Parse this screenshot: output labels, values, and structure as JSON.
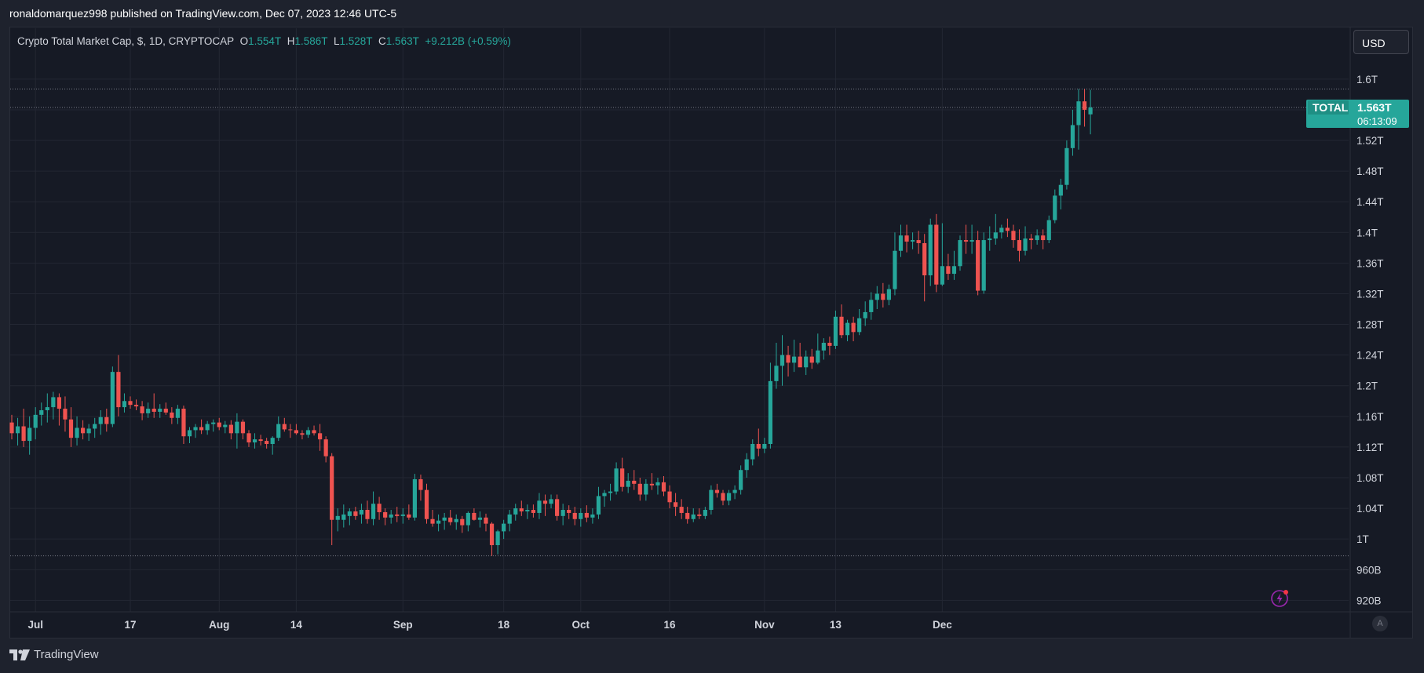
{
  "publish_line": "ronaldomarquez998 published on TradingView.com, Dec 07, 2023 12:46 UTC-5",
  "legend": {
    "symbol": "Crypto Total Market Cap, $, 1D, CRYPTOCAP",
    "o_label": "O",
    "o_value": "1.554T",
    "h_label": "H",
    "h_value": "1.586T",
    "l_label": "L",
    "l_value": "1.528T",
    "c_label": "C",
    "c_value": "1.563T",
    "change": "+9.212B (+0.59%)"
  },
  "currency_label": "USD",
  "price_tag": {
    "name": "TOTAL",
    "price": "1.563T",
    "countdown": "06:13:09"
  },
  "footer_brand": "TradingView",
  "auto_label": "A",
  "colors": {
    "up": "#26a69a",
    "down": "#ef5350",
    "grid": "#232733",
    "background": "#161a25",
    "text": "#d1d4dc",
    "accent": "#9c27b0"
  },
  "chart_data": {
    "type": "candlestick",
    "title": "Crypto Total Market Cap, $, 1D, CRYPTOCAP",
    "ylim": [
      0.905,
      1.65
    ],
    "y_unit": "T USD",
    "y_ticks": [
      "1.6T",
      "1.56T",
      "1.52T",
      "1.48T",
      "1.44T",
      "1.4T",
      "1.36T",
      "1.32T",
      "1.28T",
      "1.24T",
      "1.2T",
      "1.16T",
      "1.12T",
      "1.08T",
      "1.04T",
      "1T",
      "960B",
      "920B"
    ],
    "y_tick_values": [
      1.6,
      1.56,
      1.52,
      1.48,
      1.44,
      1.4,
      1.36,
      1.32,
      1.28,
      1.24,
      1.2,
      1.16,
      1.12,
      1.08,
      1.04,
      1.0,
      0.96,
      0.92
    ],
    "x_labels": [
      {
        "label": "Jul",
        "date": "2023-07-01"
      },
      {
        "label": "17",
        "date": "2023-07-17"
      },
      {
        "label": "Aug",
        "date": "2023-08-01"
      },
      {
        "label": "14",
        "date": "2023-08-14"
      },
      {
        "label": "Sep",
        "date": "2023-09-01"
      },
      {
        "label": "18",
        "date": "2023-09-18"
      },
      {
        "label": "Oct",
        "date": "2023-10-01"
      },
      {
        "label": "16",
        "date": "2023-10-16"
      },
      {
        "label": "Nov",
        "date": "2023-11-01"
      },
      {
        "label": "13",
        "date": "2023-11-13"
      },
      {
        "label": "Dec",
        "date": "2023-12-01"
      }
    ],
    "start_date": "2023-06-27",
    "last_price": 1.563,
    "hlines": [
      1.587,
      1.563,
      0.978
    ],
    "candles": [
      [
        1.152,
        1.162,
        1.13,
        1.138
      ],
      [
        1.138,
        1.158,
        1.122,
        1.147
      ],
      [
        1.147,
        1.17,
        1.12,
        1.128
      ],
      [
        1.128,
        1.16,
        1.11,
        1.145
      ],
      [
        1.145,
        1.172,
        1.13,
        1.162
      ],
      [
        1.162,
        1.178,
        1.148,
        1.168
      ],
      [
        1.168,
        1.19,
        1.152,
        1.172
      ],
      [
        1.172,
        1.192,
        1.156,
        1.185
      ],
      [
        1.185,
        1.19,
        1.148,
        1.17
      ],
      [
        1.17,
        1.186,
        1.14,
        1.156
      ],
      [
        1.156,
        1.172,
        1.12,
        1.132
      ],
      [
        1.132,
        1.16,
        1.122,
        1.145
      ],
      [
        1.145,
        1.155,
        1.13,
        1.138
      ],
      [
        1.138,
        1.15,
        1.128,
        1.144
      ],
      [
        1.144,
        1.158,
        1.132,
        1.15
      ],
      [
        1.15,
        1.168,
        1.136,
        1.159
      ],
      [
        1.159,
        1.17,
        1.14,
        1.15
      ],
      [
        1.15,
        1.225,
        1.146,
        1.218
      ],
      [
        1.218,
        1.24,
        1.16,
        1.172
      ],
      [
        1.172,
        1.19,
        1.165,
        1.18
      ],
      [
        1.18,
        1.186,
        1.17,
        1.175
      ],
      [
        1.175,
        1.182,
        1.168,
        1.173
      ],
      [
        1.173,
        1.18,
        1.155,
        1.164
      ],
      [
        1.164,
        1.178,
        1.158,
        1.17
      ],
      [
        1.17,
        1.19,
        1.158,
        1.166
      ],
      [
        1.166,
        1.176,
        1.158,
        1.17
      ],
      [
        1.17,
        1.178,
        1.162,
        1.165
      ],
      [
        1.165,
        1.172,
        1.15,
        1.158
      ],
      [
        1.158,
        1.175,
        1.15,
        1.17
      ],
      [
        1.17,
        1.174,
        1.124,
        1.134
      ],
      [
        1.134,
        1.146,
        1.125,
        1.142
      ],
      [
        1.142,
        1.15,
        1.132,
        1.146
      ],
      [
        1.146,
        1.156,
        1.137,
        1.142
      ],
      [
        1.142,
        1.154,
        1.136,
        1.15
      ],
      [
        1.15,
        1.156,
        1.14,
        1.152
      ],
      [
        1.152,
        1.158,
        1.142,
        1.146
      ],
      [
        1.146,
        1.154,
        1.138,
        1.149
      ],
      [
        1.149,
        1.155,
        1.13,
        1.138
      ],
      [
        1.138,
        1.164,
        1.118,
        1.153
      ],
      [
        1.153,
        1.156,
        1.13,
        1.138
      ],
      [
        1.138,
        1.142,
        1.12,
        1.126
      ],
      [
        1.126,
        1.138,
        1.118,
        1.13
      ],
      [
        1.13,
        1.136,
        1.122,
        1.128
      ],
      [
        1.128,
        1.132,
        1.118,
        1.124
      ],
      [
        1.124,
        1.134,
        1.11,
        1.132
      ],
      [
        1.132,
        1.16,
        1.128,
        1.15
      ],
      [
        1.15,
        1.158,
        1.14,
        1.143
      ],
      [
        1.143,
        1.15,
        1.132,
        1.142
      ],
      [
        1.142,
        1.15,
        1.136,
        1.138
      ],
      [
        1.138,
        1.142,
        1.13,
        1.136
      ],
      [
        1.136,
        1.146,
        1.132,
        1.142
      ],
      [
        1.142,
        1.148,
        1.135,
        1.138
      ],
      [
        1.138,
        1.15,
        1.115,
        1.13
      ],
      [
        1.13,
        1.134,
        1.1,
        1.108
      ],
      [
        1.108,
        1.112,
        0.992,
        1.025
      ],
      [
        1.025,
        1.04,
        1.01,
        1.03
      ],
      [
        1.025,
        1.045,
        1.015,
        1.032
      ],
      [
        1.03,
        1.04,
        1.018,
        1.036
      ],
      [
        1.036,
        1.042,
        1.025,
        1.03
      ],
      [
        1.032,
        1.046,
        1.02,
        1.038
      ],
      [
        1.038,
        1.05,
        1.02,
        1.026
      ],
      [
        1.026,
        1.062,
        1.018,
        1.046
      ],
      [
        1.046,
        1.055,
        1.025,
        1.035
      ],
      [
        1.035,
        1.04,
        1.018,
        1.028
      ],
      [
        1.028,
        1.038,
        1.02,
        1.032
      ],
      [
        1.032,
        1.042,
        1.022,
        1.03
      ],
      [
        1.03,
        1.04,
        1.02,
        1.032
      ],
      [
        1.032,
        1.045,
        1.025,
        1.028
      ],
      [
        1.028,
        1.085,
        1.024,
        1.078
      ],
      [
        1.078,
        1.084,
        1.05,
        1.064
      ],
      [
        1.064,
        1.072,
        1.02,
        1.026
      ],
      [
        1.026,
        1.038,
        1.016,
        1.02
      ],
      [
        1.02,
        1.032,
        1.01,
        1.024
      ],
      [
        1.024,
        1.034,
        1.012,
        1.028
      ],
      [
        1.028,
        1.038,
        1.018,
        1.022
      ],
      [
        1.022,
        1.032,
        1.012,
        1.026
      ],
      [
        1.026,
        1.03,
        1.008,
        1.018
      ],
      [
        1.018,
        1.036,
        1.01,
        1.034
      ],
      [
        1.034,
        1.04,
        1.024,
        1.025
      ],
      [
        1.025,
        1.036,
        1.015,
        1.028
      ],
      [
        1.028,
        1.033,
        1.01,
        1.02
      ],
      [
        1.02,
        1.022,
        0.978,
        0.992
      ],
      [
        0.992,
        1.012,
        0.98,
        1.01
      ],
      [
        1.01,
        1.025,
        1.0,
        1.02
      ],
      [
        1.02,
        1.038,
        1.01,
        1.032
      ],
      [
        1.032,
        1.046,
        1.024,
        1.04
      ],
      [
        1.04,
        1.05,
        1.03,
        1.036
      ],
      [
        1.036,
        1.045,
        1.026,
        1.038
      ],
      [
        1.038,
        1.045,
        1.028,
        1.034
      ],
      [
        1.034,
        1.06,
        1.026,
        1.05
      ],
      [
        1.05,
        1.058,
        1.03,
        1.046
      ],
      [
        1.046,
        1.058,
        1.04,
        1.052
      ],
      [
        1.052,
        1.058,
        1.024,
        1.03
      ],
      [
        1.03,
        1.046,
        1.018,
        1.038
      ],
      [
        1.038,
        1.044,
        1.026,
        1.034
      ],
      [
        1.034,
        1.042,
        1.018,
        1.026
      ],
      [
        1.026,
        1.04,
        1.016,
        1.034
      ],
      [
        1.034,
        1.044,
        1.022,
        1.028
      ],
      [
        1.028,
        1.04,
        1.02,
        1.032
      ],
      [
        1.032,
        1.068,
        1.026,
        1.056
      ],
      [
        1.056,
        1.064,
        1.042,
        1.06
      ],
      [
        1.06,
        1.072,
        1.05,
        1.062
      ],
      [
        1.062,
        1.1,
        1.058,
        1.092
      ],
      [
        1.092,
        1.106,
        1.062,
        1.068
      ],
      [
        1.068,
        1.086,
        1.06,
        1.076
      ],
      [
        1.076,
        1.09,
        1.064,
        1.072
      ],
      [
        1.072,
        1.08,
        1.05,
        1.058
      ],
      [
        1.058,
        1.078,
        1.05,
        1.072
      ],
      [
        1.072,
        1.086,
        1.064,
        1.07
      ],
      [
        1.07,
        1.08,
        1.058,
        1.074
      ],
      [
        1.074,
        1.082,
        1.056,
        1.062
      ],
      [
        1.062,
        1.07,
        1.04,
        1.048
      ],
      [
        1.048,
        1.06,
        1.03,
        1.042
      ],
      [
        1.042,
        1.052,
        1.026,
        1.034
      ],
      [
        1.034,
        1.042,
        1.02,
        1.026
      ],
      [
        1.026,
        1.04,
        1.022,
        1.032
      ],
      [
        1.032,
        1.04,
        1.026,
        1.03
      ],
      [
        1.03,
        1.042,
        1.026,
        1.038
      ],
      [
        1.038,
        1.07,
        1.032,
        1.064
      ],
      [
        1.064,
        1.072,
        1.054,
        1.06
      ],
      [
        1.06,
        1.064,
        1.044,
        1.05
      ],
      [
        1.05,
        1.064,
        1.044,
        1.06
      ],
      [
        1.06,
        1.07,
        1.052,
        1.064
      ],
      [
        1.064,
        1.096,
        1.058,
        1.09
      ],
      [
        1.09,
        1.112,
        1.08,
        1.104
      ],
      [
        1.104,
        1.13,
        1.096,
        1.124
      ],
      [
        1.124,
        1.144,
        1.108,
        1.118
      ],
      [
        1.118,
        1.132,
        1.112,
        1.124
      ],
      [
        1.124,
        1.23,
        1.118,
        1.206
      ],
      [
        1.206,
        1.256,
        1.196,
        1.226
      ],
      [
        1.226,
        1.266,
        1.2,
        1.24
      ],
      [
        1.24,
        1.252,
        1.212,
        1.23
      ],
      [
        1.23,
        1.26,
        1.218,
        1.238
      ],
      [
        1.238,
        1.256,
        1.226,
        1.224
      ],
      [
        1.224,
        1.246,
        1.214,
        1.238
      ],
      [
        1.238,
        1.248,
        1.222,
        1.23
      ],
      [
        1.23,
        1.268,
        1.228,
        1.246
      ],
      [
        1.246,
        1.262,
        1.234,
        1.256
      ],
      [
        1.256,
        1.264,
        1.24,
        1.252
      ],
      [
        1.252,
        1.298,
        1.248,
        1.29
      ],
      [
        1.29,
        1.306,
        1.262,
        1.266
      ],
      [
        1.266,
        1.286,
        1.258,
        1.282
      ],
      [
        1.282,
        1.29,
        1.258,
        1.27
      ],
      [
        1.27,
        1.3,
        1.266,
        1.288
      ],
      [
        1.288,
        1.31,
        1.278,
        1.296
      ],
      [
        1.296,
        1.322,
        1.286,
        1.312
      ],
      [
        1.312,
        1.33,
        1.3,
        1.32
      ],
      [
        1.32,
        1.334,
        1.302,
        1.312
      ],
      [
        1.312,
        1.332,
        1.305,
        1.326
      ],
      [
        1.326,
        1.4,
        1.318,
        1.376
      ],
      [
        1.376,
        1.41,
        1.368,
        1.396
      ],
      [
        1.396,
        1.41,
        1.374,
        1.388
      ],
      [
        1.388,
        1.4,
        1.378,
        1.39
      ],
      [
        1.39,
        1.402,
        1.372,
        1.386
      ],
      [
        1.386,
        1.398,
        1.31,
        1.344
      ],
      [
        1.344,
        1.418,
        1.33,
        1.41
      ],
      [
        1.41,
        1.424,
        1.322,
        1.332
      ],
      [
        1.332,
        1.412,
        1.33,
        1.356
      ],
      [
        1.356,
        1.372,
        1.338,
        1.346
      ],
      [
        1.346,
        1.376,
        1.338,
        1.356
      ],
      [
        1.356,
        1.396,
        1.35,
        1.39
      ],
      [
        1.39,
        1.41,
        1.372,
        1.388
      ],
      [
        1.388,
        1.41,
        1.372,
        1.39
      ],
      [
        1.39,
        1.402,
        1.318,
        1.324
      ],
      [
        1.324,
        1.4,
        1.32,
        1.39
      ],
      [
        1.39,
        1.408,
        1.376,
        1.392
      ],
      [
        1.392,
        1.424,
        1.384,
        1.4
      ],
      [
        1.4,
        1.41,
        1.392,
        1.406
      ],
      [
        1.406,
        1.418,
        1.394,
        1.402
      ],
      [
        1.402,
        1.41,
        1.38,
        1.39
      ],
      [
        1.39,
        1.404,
        1.362,
        1.376
      ],
      [
        1.376,
        1.408,
        1.37,
        1.392
      ],
      [
        1.392,
        1.398,
        1.378,
        1.39
      ],
      [
        1.39,
        1.404,
        1.384,
        1.396
      ],
      [
        1.396,
        1.404,
        1.378,
        1.39
      ],
      [
        1.39,
        1.422,
        1.386,
        1.416
      ],
      [
        1.416,
        1.456,
        1.412,
        1.448
      ],
      [
        1.448,
        1.47,
        1.43,
        1.462
      ],
      [
        1.462,
        1.52,
        1.456,
        1.51
      ],
      [
        1.51,
        1.56,
        1.5,
        1.54
      ],
      [
        1.54,
        1.587,
        1.508,
        1.571
      ],
      [
        1.571,
        1.587,
        1.538,
        1.56
      ],
      [
        1.554,
        1.586,
        1.528,
        1.563
      ]
    ]
  }
}
